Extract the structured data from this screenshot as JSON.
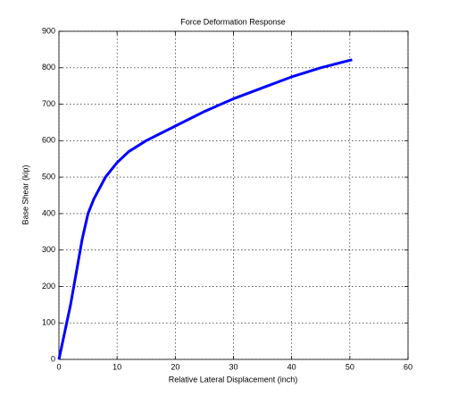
{
  "chart_data": {
    "type": "line",
    "title": "Force Deformation Response",
    "x_label": "Relative Lateral Displacement (inch)",
    "y_label": "Base Shear (kip)",
    "series": [
      {
        "name": "Base Shear",
        "color": "#0000ff",
        "x": [
          0,
          2,
          4,
          5,
          6,
          8,
          10,
          12,
          15,
          20,
          25,
          30,
          35,
          40,
          45,
          50.4
        ],
        "values": [
          0,
          150,
          330,
          400,
          440,
          500,
          540,
          570,
          600,
          640,
          680,
          715,
          745,
          775,
          800,
          822
        ]
      }
    ],
    "xlim": [
      0,
      60
    ],
    "xticks": [
      0,
      10,
      20,
      30,
      40,
      50,
      60
    ],
    "ylim": [
      0,
      900
    ],
    "yticks": [
      0,
      100,
      200,
      300,
      400,
      500,
      600,
      700,
      800,
      900
    ],
    "grid": true
  }
}
